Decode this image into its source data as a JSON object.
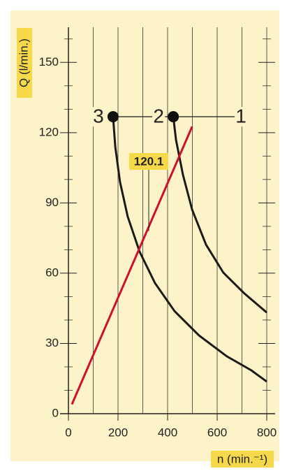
{
  "chart_data": {
    "type": "line",
    "xlabel": "n (min.⁻¹)",
    "ylabel": "Q (l/min.)",
    "xlim": [
      0,
      800
    ],
    "ylim": [
      0,
      165
    ],
    "xticks": [
      0,
      200,
      400,
      600,
      800
    ],
    "yticks": [
      0,
      30,
      60,
      90,
      120,
      150
    ],
    "xgrid": [
      100,
      200,
      300,
      400,
      500,
      600,
      700,
      800
    ],
    "y_minor_ticks": [
      10,
      20,
      40,
      50,
      70,
      80,
      100,
      110,
      130,
      140,
      160
    ],
    "series": [
      {
        "color": "#1a1a1a",
        "x": [
          180,
          189,
          208,
          239,
          287,
          349,
          428,
          527,
          639,
          738,
          800
        ],
        "values": [
          126.8,
          113.9,
          99.0,
          84.2,
          69.2,
          55.8,
          43.8,
          33.4,
          24.5,
          18.5,
          13.7
        ]
      },
      {
        "color": "#1a1a1a",
        "x": [
          423,
          434,
          462,
          499,
          555,
          625,
          710,
          800
        ],
        "values": [
          126.8,
          116.9,
          102,
          87.1,
          72.2,
          60.2,
          51.3,
          43.2
        ]
      },
      {
        "color": "#1a1a1a",
        "x": [
          180,
          720
        ],
        "values": [
          126.8,
          126.8
        ]
      },
      {
        "color": "#d0102a",
        "x": [
          14,
          499
        ],
        "values": [
          4,
          122.6
        ]
      }
    ],
    "markers": [
      {
        "label": "3",
        "x": 180,
        "y": 126.8,
        "dot": true
      },
      {
        "label": "2",
        "x": 423,
        "y": 126.8,
        "dot": true
      },
      {
        "label": "1",
        "x": 755,
        "y": 126.8,
        "dot": false
      }
    ],
    "annotation": {
      "text": "120.1",
      "x": 324,
      "y": 107.7,
      "y_end": 78
    }
  }
}
